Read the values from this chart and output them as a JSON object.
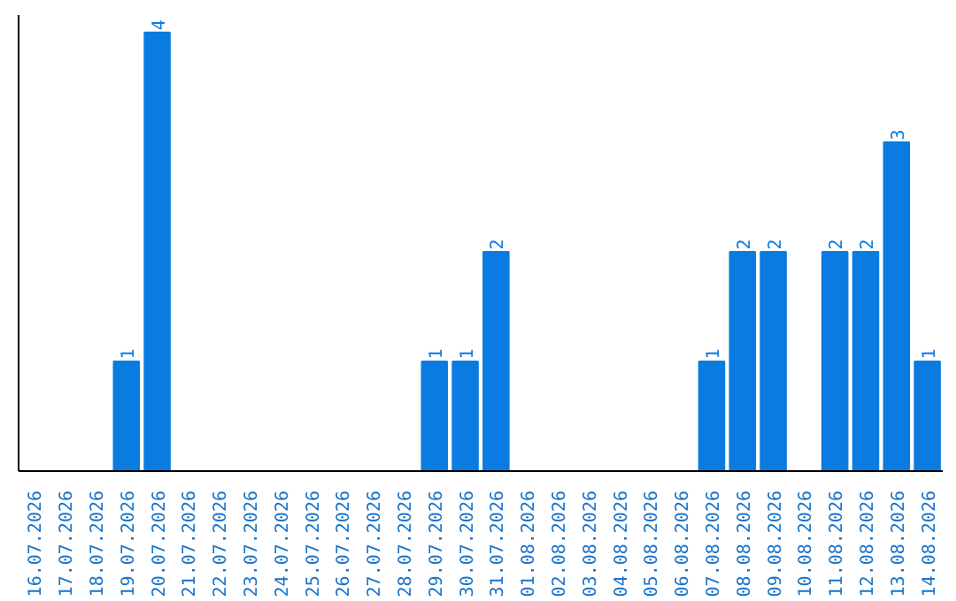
{
  "chart_data": {
    "type": "bar",
    "categories": [
      "16.07.2026",
      "17.07.2026",
      "18.07.2026",
      "19.07.2026",
      "20.07.2026",
      "21.07.2026",
      "22.07.2026",
      "23.07.2026",
      "24.07.2026",
      "25.07.2026",
      "26.07.2026",
      "27.07.2026",
      "28.07.2026",
      "29.07.2026",
      "30.07.2026",
      "31.07.2026",
      "01.08.2026",
      "02.08.2026",
      "03.08.2026",
      "04.08.2026",
      "05.08.2026",
      "06.08.2026",
      "07.08.2026",
      "08.08.2026",
      "09.08.2026",
      "10.08.2026",
      "11.08.2026",
      "12.08.2026",
      "13.08.2026",
      "14.08.2026"
    ],
    "values": [
      0,
      0,
      0,
      1,
      4,
      0,
      0,
      0,
      0,
      0,
      0,
      0,
      0,
      1,
      1,
      2,
      0,
      0,
      0,
      0,
      0,
      0,
      1,
      2,
      2,
      0,
      2,
      2,
      3,
      1
    ],
    "value_labels": [
      null,
      null,
      null,
      "1",
      "4",
      null,
      null,
      null,
      null,
      null,
      null,
      null,
      null,
      "1",
      "1",
      "2",
      null,
      null,
      null,
      null,
      null,
      null,
      "1",
      "2",
      "2",
      null,
      "2",
      "2",
      "3",
      "1"
    ],
    "color": "#0a7be0",
    "tick_labels": "x",
    "grid": false
  }
}
